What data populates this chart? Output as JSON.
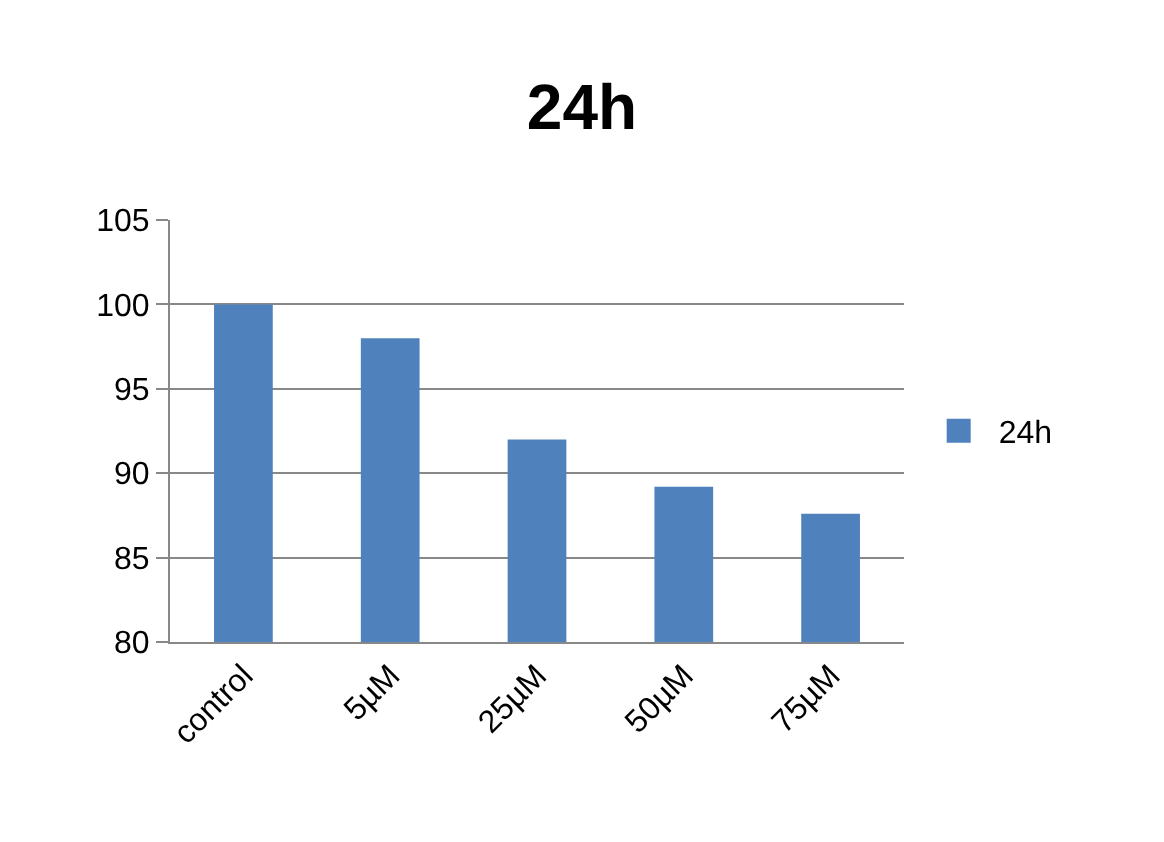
{
  "chart_data": {
    "type": "bar",
    "title": "24h",
    "categories": [
      "control",
      "5µM",
      "25µM",
      "50µM",
      "75µM"
    ],
    "series": [
      {
        "name": "24h",
        "color": "#4f81bd",
        "values": [
          100,
          98,
          92,
          89.2,
          87.6
        ]
      }
    ],
    "ylim": [
      80,
      105
    ],
    "yticks": [
      80,
      85,
      90,
      95,
      100,
      105
    ],
    "grid": "y",
    "legend": "right"
  }
}
